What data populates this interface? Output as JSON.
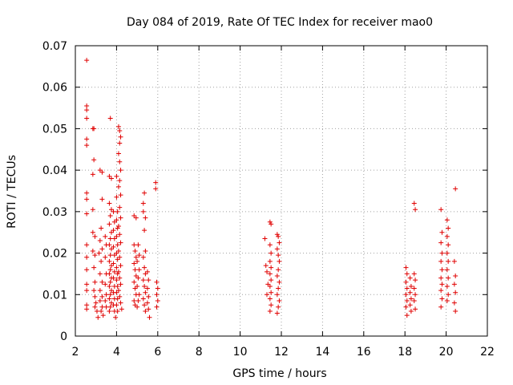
{
  "chart_data": {
    "type": "scatter",
    "title": "Day 084 of 2019, Rate Of TEC Index for receiver mao0",
    "xlabel": "GPS time / hours",
    "ylabel": "ROTI / TECUs",
    "xlim": [
      2,
      22
    ],
    "ylim": [
      0,
      0.07
    ],
    "xticks": [
      2,
      4,
      6,
      8,
      10,
      12,
      14,
      16,
      18,
      20,
      22
    ],
    "yticks": [
      0,
      0.01,
      0.02,
      0.03,
      0.04,
      0.05,
      0.06,
      0.07
    ],
    "ytick_labels": [
      "0",
      "0.01",
      "0.02",
      "0.03",
      "0.04",
      "0.05",
      "0.06",
      "0.07"
    ],
    "grid": true,
    "marker": "+",
    "color": "#e00000",
    "series": [
      {
        "name": "ROTI",
        "points": [
          [
            2.55,
            0.0665
          ],
          [
            2.55,
            0.0555
          ],
          [
            2.55,
            0.0545
          ],
          [
            2.55,
            0.0525
          ],
          [
            2.55,
            0.0475
          ],
          [
            2.55,
            0.046
          ],
          [
            2.55,
            0.0345
          ],
          [
            2.55,
            0.033
          ],
          [
            2.55,
            0.0295
          ],
          [
            2.55,
            0.022
          ],
          [
            2.55,
            0.019
          ],
          [
            2.55,
            0.016
          ],
          [
            2.55,
            0.0125
          ],
          [
            2.55,
            0.011
          ],
          [
            2.55,
            0.0075
          ],
          [
            2.55,
            0.0065
          ],
          [
            2.85,
            0.05
          ],
          [
            2.9,
            0.05
          ],
          [
            2.9,
            0.0425
          ],
          [
            2.85,
            0.039
          ],
          [
            2.85,
            0.0305
          ],
          [
            2.85,
            0.025
          ],
          [
            2.95,
            0.024
          ],
          [
            2.85,
            0.0205
          ],
          [
            2.95,
            0.0195
          ],
          [
            2.9,
            0.0165
          ],
          [
            2.95,
            0.013
          ],
          [
            2.9,
            0.011
          ],
          [
            2.95,
            0.0095
          ],
          [
            3.0,
            0.008
          ],
          [
            3.05,
            0.006
          ],
          [
            3.1,
            0.0045
          ],
          [
            2.95,
            0.007
          ],
          [
            3.2,
            0.04
          ],
          [
            3.3,
            0.0395
          ],
          [
            3.3,
            0.033
          ],
          [
            3.25,
            0.026
          ],
          [
            3.2,
            0.023
          ],
          [
            3.3,
            0.021
          ],
          [
            3.15,
            0.02
          ],
          [
            3.25,
            0.018
          ],
          [
            3.2,
            0.015
          ],
          [
            3.3,
            0.013
          ],
          [
            3.2,
            0.011
          ],
          [
            3.3,
            0.0095
          ],
          [
            3.2,
            0.0085
          ],
          [
            3.3,
            0.007
          ],
          [
            3.25,
            0.006
          ],
          [
            3.35,
            0.005
          ],
          [
            3.45,
            0.024
          ],
          [
            3.5,
            0.022
          ],
          [
            3.45,
            0.019
          ],
          [
            3.5,
            0.015
          ],
          [
            3.45,
            0.0125
          ],
          [
            3.5,
            0.01
          ],
          [
            3.45,
            0.0085
          ],
          [
            3.5,
            0.007
          ],
          [
            3.7,
            0.0525
          ],
          [
            3.65,
            0.0385
          ],
          [
            3.75,
            0.038
          ],
          [
            3.65,
            0.032
          ],
          [
            3.75,
            0.0305
          ],
          [
            3.7,
            0.029
          ],
          [
            3.65,
            0.027
          ],
          [
            3.75,
            0.025
          ],
          [
            3.7,
            0.0235
          ],
          [
            3.65,
            0.022
          ],
          [
            3.75,
            0.021
          ],
          [
            3.7,
            0.0195
          ],
          [
            3.65,
            0.018
          ],
          [
            3.75,
            0.017
          ],
          [
            3.7,
            0.016
          ],
          [
            3.65,
            0.015
          ],
          [
            3.75,
            0.014
          ],
          [
            3.7,
            0.013
          ],
          [
            3.65,
            0.012
          ],
          [
            3.75,
            0.011
          ],
          [
            3.7,
            0.01
          ],
          [
            3.65,
            0.009
          ],
          [
            3.75,
            0.008
          ],
          [
            3.7,
            0.007
          ],
          [
            3.65,
            0.006
          ],
          [
            3.85,
            0.03
          ],
          [
            3.9,
            0.0275
          ],
          [
            3.85,
            0.0255
          ],
          [
            3.9,
            0.0235
          ],
          [
            3.85,
            0.0215
          ],
          [
            3.9,
            0.0195
          ],
          [
            3.85,
            0.0175
          ],
          [
            3.9,
            0.0155
          ],
          [
            3.85,
            0.014
          ],
          [
            3.9,
            0.012
          ],
          [
            3.85,
            0.0105
          ],
          [
            3.9,
            0.009
          ],
          [
            3.85,
            0.0075
          ],
          [
            3.9,
            0.006
          ],
          [
            3.95,
            0.0045
          ],
          [
            4.0,
            0.0385
          ],
          [
            4.0,
            0.0335
          ],
          [
            4.05,
            0.03
          ],
          [
            4.0,
            0.028
          ],
          [
            4.05,
            0.026
          ],
          [
            4.0,
            0.024
          ],
          [
            4.05,
            0.022
          ],
          [
            4.0,
            0.02
          ],
          [
            4.05,
            0.0185
          ],
          [
            4.0,
            0.0165
          ],
          [
            4.05,
            0.015
          ],
          [
            4.0,
            0.0135
          ],
          [
            4.05,
            0.012
          ],
          [
            4.0,
            0.0105
          ],
          [
            4.05,
            0.009
          ],
          [
            4.0,
            0.0075
          ],
          [
            4.05,
            0.006
          ],
          [
            4.1,
            0.0505
          ],
          [
            4.15,
            0.0495
          ],
          [
            4.15,
            0.0465
          ],
          [
            4.2,
            0.048
          ],
          [
            4.1,
            0.044
          ],
          [
            4.15,
            0.042
          ],
          [
            4.2,
            0.04
          ],
          [
            4.15,
            0.0375
          ],
          [
            4.1,
            0.036
          ],
          [
            4.2,
            0.034
          ],
          [
            4.15,
            0.031
          ],
          [
            4.2,
            0.0285
          ],
          [
            4.1,
            0.0265
          ],
          [
            4.15,
            0.0245
          ],
          [
            4.2,
            0.0225
          ],
          [
            4.1,
            0.0205
          ],
          [
            4.15,
            0.019
          ],
          [
            4.2,
            0.017
          ],
          [
            4.1,
            0.0155
          ],
          [
            4.15,
            0.014
          ],
          [
            4.2,
            0.0125
          ],
          [
            4.1,
            0.011
          ],
          [
            4.15,
            0.0095
          ],
          [
            4.2,
            0.008
          ],
          [
            4.25,
            0.0065
          ],
          [
            4.85,
            0.029
          ],
          [
            4.95,
            0.0285
          ],
          [
            4.85,
            0.022
          ],
          [
            4.9,
            0.0205
          ],
          [
            4.95,
            0.019
          ],
          [
            4.85,
            0.0175
          ],
          [
            4.9,
            0.016
          ],
          [
            4.95,
            0.0145
          ],
          [
            4.85,
            0.013
          ],
          [
            4.9,
            0.0115
          ],
          [
            4.95,
            0.01
          ],
          [
            4.85,
            0.0085
          ],
          [
            4.9,
            0.0075
          ],
          [
            5.05,
            0.022
          ],
          [
            5.1,
            0.0195
          ],
          [
            5.0,
            0.018
          ],
          [
            5.1,
            0.016
          ],
          [
            5.05,
            0.014
          ],
          [
            5.0,
            0.012
          ],
          [
            5.1,
            0.01
          ],
          [
            5.05,
            0.0085
          ],
          [
            5.0,
            0.007
          ],
          [
            5.35,
            0.0345
          ],
          [
            5.3,
            0.032
          ],
          [
            5.3,
            0.03
          ],
          [
            5.4,
            0.0285
          ],
          [
            5.35,
            0.0255
          ],
          [
            5.4,
            0.0205
          ],
          [
            5.3,
            0.019
          ],
          [
            5.35,
            0.0165
          ],
          [
            5.4,
            0.015
          ],
          [
            5.3,
            0.0135
          ],
          [
            5.35,
            0.012
          ],
          [
            5.4,
            0.0105
          ],
          [
            5.3,
            0.009
          ],
          [
            5.35,
            0.0075
          ],
          [
            5.4,
            0.006
          ],
          [
            5.5,
            0.0155
          ],
          [
            5.55,
            0.0135
          ],
          [
            5.5,
            0.0115
          ],
          [
            5.55,
            0.0095
          ],
          [
            5.5,
            0.008
          ],
          [
            5.55,
            0.0065
          ],
          [
            5.6,
            0.0045
          ],
          [
            5.9,
            0.037
          ],
          [
            5.9,
            0.0355
          ],
          [
            5.95,
            0.013
          ],
          [
            6.0,
            0.0115
          ],
          [
            5.95,
            0.01
          ],
          [
            6.0,
            0.0085
          ],
          [
            5.95,
            0.007
          ],
          [
            11.2,
            0.0235
          ],
          [
            11.25,
            0.017
          ],
          [
            11.3,
            0.0155
          ],
          [
            11.35,
            0.0125
          ],
          [
            11.3,
            0.01
          ],
          [
            11.45,
            0.0275
          ],
          [
            11.5,
            0.027
          ],
          [
            11.45,
            0.022
          ],
          [
            11.5,
            0.02
          ],
          [
            11.45,
            0.018
          ],
          [
            11.5,
            0.0165
          ],
          [
            11.45,
            0.015
          ],
          [
            11.5,
            0.0135
          ],
          [
            11.45,
            0.012
          ],
          [
            11.5,
            0.0105
          ],
          [
            11.45,
            0.009
          ],
          [
            11.5,
            0.0075
          ],
          [
            11.45,
            0.006
          ],
          [
            11.8,
            0.0245
          ],
          [
            11.85,
            0.024
          ],
          [
            11.9,
            0.0225
          ],
          [
            11.8,
            0.021
          ],
          [
            11.85,
            0.0195
          ],
          [
            11.9,
            0.018
          ],
          [
            11.85,
            0.016
          ],
          [
            11.8,
            0.0145
          ],
          [
            11.9,
            0.013
          ],
          [
            11.85,
            0.0115
          ],
          [
            11.8,
            0.01
          ],
          [
            11.9,
            0.0085
          ],
          [
            11.85,
            0.007
          ],
          [
            11.8,
            0.0055
          ],
          [
            18.05,
            0.0165
          ],
          [
            18.1,
            0.015
          ],
          [
            18.05,
            0.013
          ],
          [
            18.1,
            0.0115
          ],
          [
            18.05,
            0.01
          ],
          [
            18.1,
            0.0085
          ],
          [
            18.05,
            0.007
          ],
          [
            18.1,
            0.005
          ],
          [
            18.25,
            0.014
          ],
          [
            18.3,
            0.012
          ],
          [
            18.25,
            0.0105
          ],
          [
            18.3,
            0.009
          ],
          [
            18.25,
            0.0075
          ],
          [
            18.3,
            0.006
          ],
          [
            18.45,
            0.032
          ],
          [
            18.5,
            0.0305
          ],
          [
            18.45,
            0.015
          ],
          [
            18.5,
            0.0135
          ],
          [
            18.45,
            0.0115
          ],
          [
            18.5,
            0.01
          ],
          [
            18.45,
            0.0085
          ],
          [
            18.5,
            0.0065
          ],
          [
            19.75,
            0.0305
          ],
          [
            19.8,
            0.025
          ],
          [
            19.75,
            0.0225
          ],
          [
            19.8,
            0.02
          ],
          [
            19.75,
            0.018
          ],
          [
            19.8,
            0.016
          ],
          [
            19.75,
            0.014
          ],
          [
            19.8,
            0.0125
          ],
          [
            19.75,
            0.011
          ],
          [
            19.8,
            0.009
          ],
          [
            19.75,
            0.007
          ],
          [
            20.05,
            0.028
          ],
          [
            20.1,
            0.026
          ],
          [
            20.05,
            0.024
          ],
          [
            20.1,
            0.022
          ],
          [
            20.05,
            0.02
          ],
          [
            20.1,
            0.018
          ],
          [
            20.05,
            0.016
          ],
          [
            20.1,
            0.014
          ],
          [
            20.05,
            0.012
          ],
          [
            20.1,
            0.01
          ],
          [
            20.05,
            0.0085
          ],
          [
            20.45,
            0.0355
          ],
          [
            20.4,
            0.018
          ],
          [
            20.45,
            0.0145
          ],
          [
            20.4,
            0.0125
          ],
          [
            20.45,
            0.0105
          ],
          [
            20.4,
            0.008
          ],
          [
            20.45,
            0.006
          ]
        ]
      }
    ]
  }
}
